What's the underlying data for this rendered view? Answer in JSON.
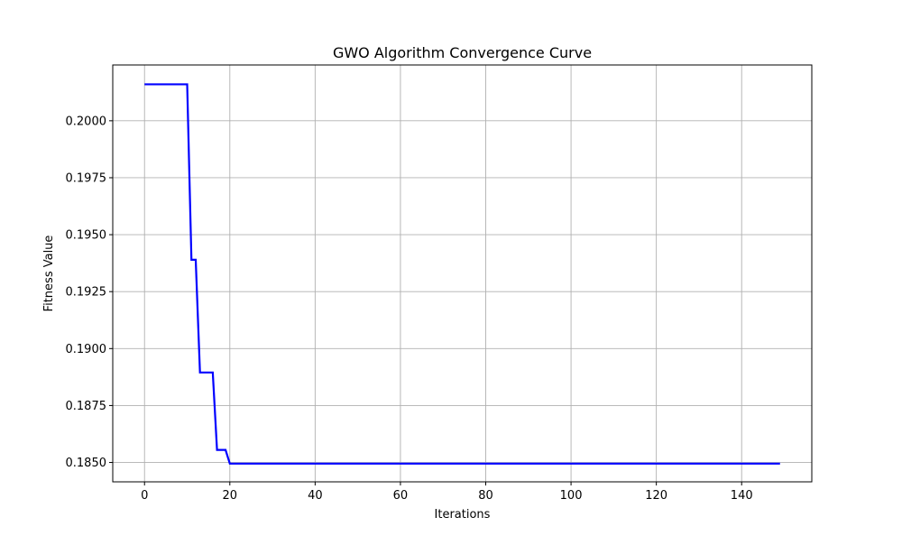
{
  "chart_data": {
    "type": "line",
    "title": "GWO Algorithm Convergence Curve",
    "xlabel": "Iterations",
    "ylabel": "Fitness Value",
    "xlim": [
      -7.45,
      156.45
    ],
    "ylim": [
      0.18415,
      0.20245
    ],
    "xticks": [
      0,
      20,
      40,
      60,
      80,
      100,
      120,
      140
    ],
    "yticks": [
      0.185,
      0.1875,
      0.19,
      0.1925,
      0.195,
      0.1975,
      0.2
    ],
    "ytick_labels": [
      "0.1850",
      "0.1875",
      "0.1900",
      "0.1925",
      "0.1950",
      "0.1975",
      "0.2000"
    ],
    "grid": true,
    "series": [
      {
        "color": "#0000ff",
        "points": [
          [
            0,
            0.2016
          ],
          [
            10,
            0.2016
          ],
          [
            11,
            0.1939
          ],
          [
            12,
            0.1939
          ],
          [
            13,
            0.18895
          ],
          [
            16,
            0.18895
          ],
          [
            17,
            0.18555
          ],
          [
            19,
            0.18555
          ],
          [
            20,
            0.18495
          ],
          [
            149,
            0.18495
          ]
        ]
      }
    ]
  }
}
